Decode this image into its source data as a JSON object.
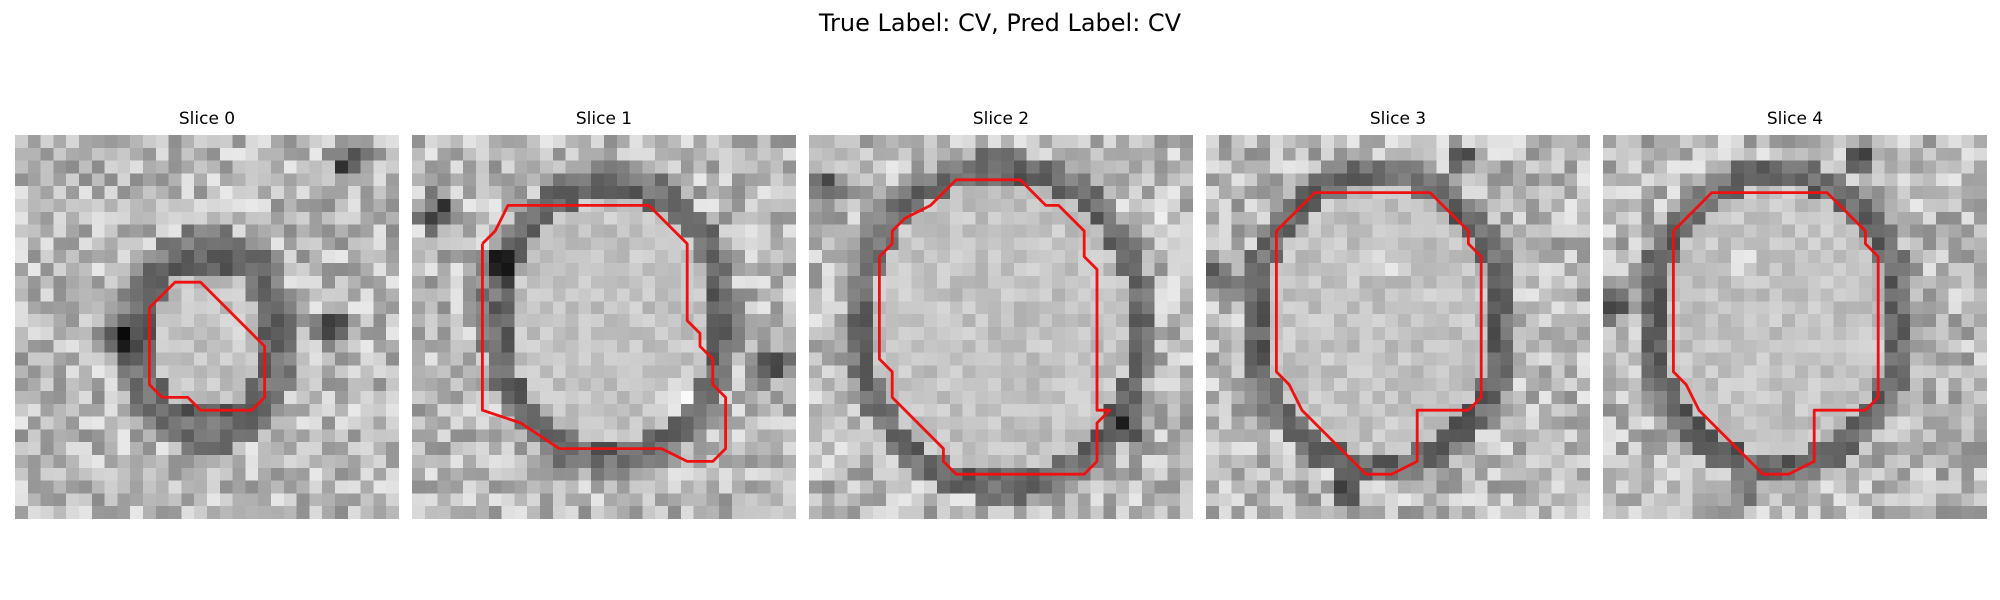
{
  "figure": {
    "title": "True Label: CV, Pred Label: CV",
    "contour_color": "#ee1111",
    "panels": [
      {
        "title": "Slice 0"
      },
      {
        "title": "Slice 1"
      },
      {
        "title": "Slice 2"
      },
      {
        "title": "Slice 3"
      },
      {
        "title": "Slice 4"
      }
    ]
  }
}
